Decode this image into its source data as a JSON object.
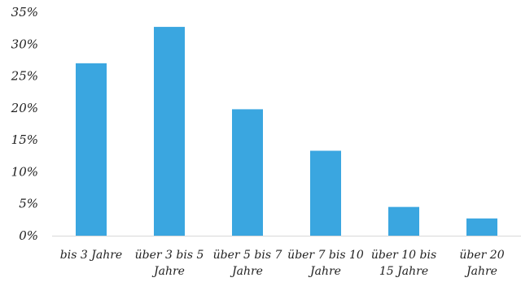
{
  "chart_data": {
    "type": "bar",
    "categories": [
      [
        "bis 3 Jahre"
      ],
      [
        "über 3 bis 5",
        "Jahre"
      ],
      [
        "über 5 bis 7",
        "Jahre"
      ],
      [
        "über 7 bis 10",
        "Jahre"
      ],
      [
        "über 10 bis",
        "15 Jahre"
      ],
      [
        "über 20",
        "Jahre"
      ]
    ],
    "values": [
      27,
      32.7,
      19.8,
      13.3,
      4.5,
      2.7
    ],
    "yticks": [
      "0%",
      "5%",
      "10%",
      "15%",
      "20%",
      "25%",
      "30%",
      "35%"
    ],
    "ylim": [
      0,
      35
    ],
    "title": "",
    "xlabel": "",
    "ylabel": "",
    "grid": false,
    "bar_color": "#3aa6e0"
  }
}
